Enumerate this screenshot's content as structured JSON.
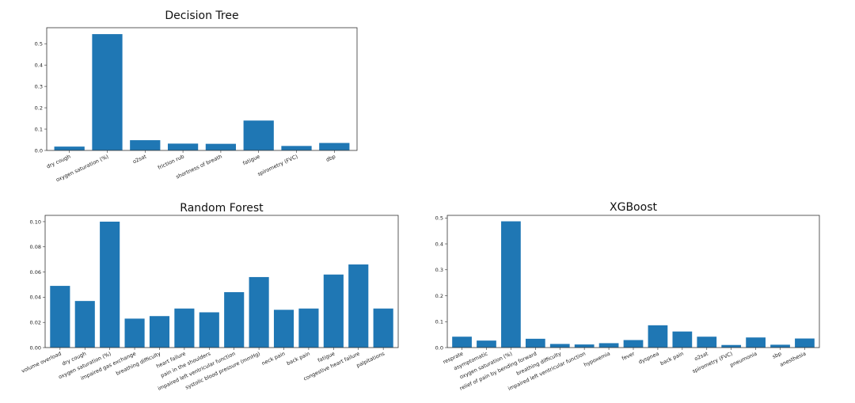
{
  "chart_data": [
    {
      "type": "bar",
      "title": "Decision Tree",
      "categories": [
        "dry cough",
        "oxygen saturation (%)",
        "o2sat",
        "friction rub",
        "shortness of breath",
        "fatigue",
        "spirometry (FVC)",
        "dbp"
      ],
      "values": [
        0.018,
        0.545,
        0.048,
        0.032,
        0.031,
        0.14,
        0.021,
        0.035
      ],
      "ylim": [
        0,
        0.575
      ],
      "yticks": [
        "0.0",
        "0.1",
        "0.2",
        "0.3",
        "0.4",
        "0.5"
      ],
      "ytick_values": [
        0,
        0.1,
        0.2,
        0.3,
        0.4,
        0.5
      ],
      "xlabel": "",
      "ylabel": ""
    },
    {
      "type": "bar",
      "title": "Random Forest",
      "categories": [
        "volume overload",
        "dry cough",
        "oxygen saturation (%)",
        "impaired gas exchange",
        "breathing difficulty",
        "heart failure",
        "pain in the shoulders",
        "impaired left ventricular function",
        "systolic blood pressure (mmHg)",
        "neck pain",
        "back pain",
        "fatigue",
        "congestive heart failure",
        "palpitations"
      ],
      "values": [
        0.049,
        0.037,
        0.1,
        0.023,
        0.025,
        0.031,
        0.028,
        0.044,
        0.056,
        0.03,
        0.031,
        0.058,
        0.066,
        0.031
      ],
      "ylim": [
        0,
        0.105
      ],
      "yticks": [
        "0.00",
        "0.02",
        "0.04",
        "0.06",
        "0.08",
        "0.10"
      ],
      "ytick_values": [
        0,
        0.02,
        0.04,
        0.06,
        0.08,
        0.1
      ],
      "xlabel": "",
      "ylabel": ""
    },
    {
      "type": "bar",
      "title": "XGBoost",
      "categories": [
        "resprate",
        "asymptomatic",
        "oxygen saturation (%)",
        "relief of pain by bending forward",
        "breathing difficulty",
        "impaired left ventricular function",
        "hypoxemia",
        "fever",
        "dyspnea",
        "back pain",
        "o2sat",
        "spirometry (FVC)",
        "pneumonia",
        "sbp",
        "anesthesia"
      ],
      "values": [
        0.042,
        0.027,
        0.487,
        0.034,
        0.014,
        0.012,
        0.017,
        0.029,
        0.086,
        0.062,
        0.042,
        0.01,
        0.039,
        0.011,
        0.035
      ],
      "ylim": [
        0,
        0.51
      ],
      "yticks": [
        "0.0",
        "0.1",
        "0.2",
        "0.3",
        "0.4",
        "0.5"
      ],
      "ytick_values": [
        0,
        0.1,
        0.2,
        0.3,
        0.4,
        0.5
      ],
      "xlabel": "",
      "ylabel": ""
    }
  ]
}
